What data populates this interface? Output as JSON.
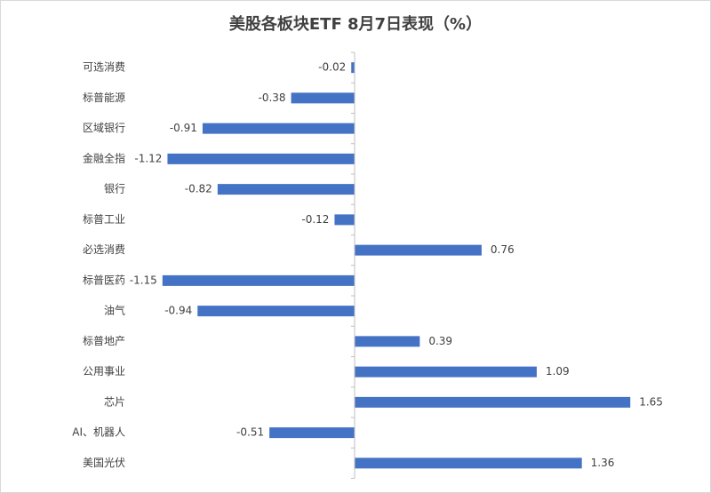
{
  "chart_data": {
    "type": "bar",
    "orientation": "horizontal",
    "title": "美股各板块ETF  8月7日表现（%）",
    "categories": [
      "可选消费",
      "标普能源",
      "区域银行",
      "金融全指",
      "银行",
      "标普工业",
      "必选消费",
      "标普医药",
      "油气",
      "标普地产",
      "公用事业",
      "芯片",
      "AI、机器人",
      "美国光伏"
    ],
    "values": [
      -0.02,
      -0.38,
      -0.91,
      -1.12,
      -0.82,
      -0.12,
      0.76,
      -1.15,
      -0.94,
      0.39,
      1.09,
      1.65,
      -0.51,
      1.36
    ],
    "color": "#4472c4"
  }
}
